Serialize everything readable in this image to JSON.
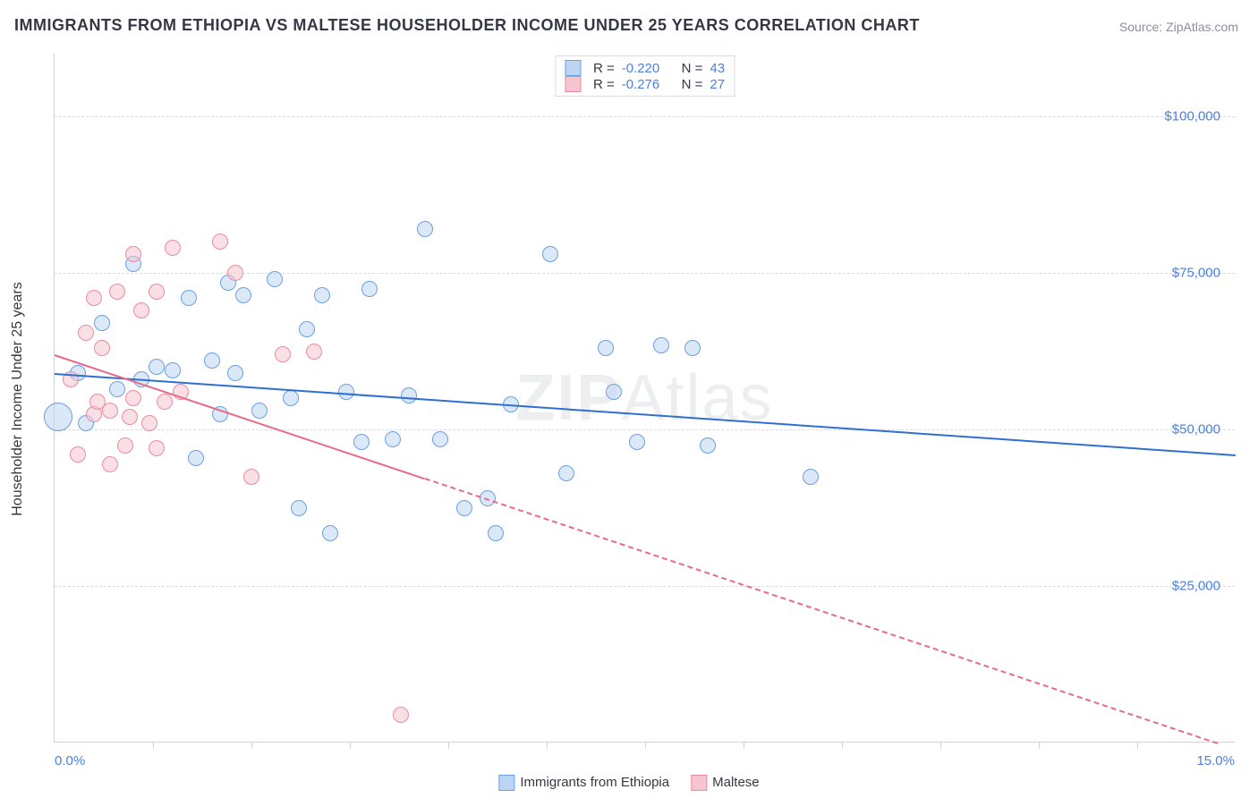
{
  "title": "IMMIGRANTS FROM ETHIOPIA VS MALTESE HOUSEHOLDER INCOME UNDER 25 YEARS CORRELATION CHART",
  "source": "Source: ZipAtlas.com",
  "watermark_a": "ZIP",
  "watermark_b": "Atlas",
  "chart": {
    "type": "scatter",
    "background_color": "#ffffff",
    "grid_color": "#d7dae0",
    "axis_color": "#cfd3da",
    "tick_color": "#cfd3da",
    "label_color": "#4a7fe0",
    "title_color": "#333844",
    "title_fontsize": 18,
    "label_fontsize": 15,
    "yaxis_title": "Householder Income Under 25 years",
    "xlim": [
      0,
      15
    ],
    "ylim": [
      0,
      110000
    ],
    "yticks": [
      25000,
      50000,
      75000,
      100000
    ],
    "ytick_labels": [
      "$25,000",
      "$50,000",
      "$75,000",
      "$100,000"
    ],
    "xticks_minor": [
      1.25,
      2.5,
      3.75,
      5.0,
      6.25,
      7.5,
      8.75,
      10.0,
      11.25,
      12.5,
      13.75
    ],
    "xtick_labels": {
      "left": "0.0%",
      "right": "15.0%"
    },
    "legend_bottom": [
      {
        "label": "Immigrants from Ethiopia",
        "fill": "#bcd5f2",
        "stroke": "#6aa0e4"
      },
      {
        "label": "Maltese",
        "fill": "#f6c5d0",
        "stroke": "#e98ba3"
      }
    ],
    "stats": [
      {
        "fill": "#bcd5f2",
        "stroke": "#6aa0e4",
        "R_label": "R =",
        "R": "-0.220",
        "N_label": "N =",
        "N": "43"
      },
      {
        "fill": "#f6c5d0",
        "stroke": "#e98ba3",
        "R_label": "R =",
        "R": "-0.276",
        "N_label": "N =",
        "N": "27"
      }
    ],
    "series": [
      {
        "name": "Immigrants from Ethiopia",
        "marker_fill": "#bcd5f2",
        "marker_stroke": "#6aa0e4",
        "marker_fill_opacity": 0.55,
        "marker_stroke_width": 1.5,
        "marker_radius": 9,
        "trend": {
          "x1": 0,
          "y1": 59000,
          "x2": 15,
          "y2": 46000,
          "color": "#2f6fd1",
          "width": 2.5,
          "dash_after_x": null
        },
        "points": [
          {
            "x": 0.05,
            "y": 52000,
            "r": 16
          },
          {
            "x": 0.3,
            "y": 59000
          },
          {
            "x": 0.4,
            "y": 51000
          },
          {
            "x": 0.6,
            "y": 67000
          },
          {
            "x": 0.8,
            "y": 56500
          },
          {
            "x": 1.0,
            "y": 76500
          },
          {
            "x": 1.1,
            "y": 58000
          },
          {
            "x": 1.3,
            "y": 60000
          },
          {
            "x": 1.5,
            "y": 59500
          },
          {
            "x": 1.7,
            "y": 71000
          },
          {
            "x": 1.8,
            "y": 45500
          },
          {
            "x": 2.0,
            "y": 61000
          },
          {
            "x": 2.1,
            "y": 52500
          },
          {
            "x": 2.3,
            "y": 59000
          },
          {
            "x": 2.4,
            "y": 71500
          },
          {
            "x": 2.6,
            "y": 53000
          },
          {
            "x": 2.8,
            "y": 74000
          },
          {
            "x": 3.0,
            "y": 55000
          },
          {
            "x": 3.1,
            "y": 37500
          },
          {
            "x": 3.2,
            "y": 66000
          },
          {
            "x": 3.4,
            "y": 71500
          },
          {
            "x": 3.5,
            "y": 33500
          },
          {
            "x": 3.7,
            "y": 56000
          },
          {
            "x": 4.0,
            "y": 72500
          },
          {
            "x": 4.3,
            "y": 48500
          },
          {
            "x": 4.5,
            "y": 55500
          },
          {
            "x": 4.7,
            "y": 82000
          },
          {
            "x": 4.9,
            "y": 48500
          },
          {
            "x": 5.2,
            "y": 37500
          },
          {
            "x": 5.5,
            "y": 39000
          },
          {
            "x": 5.6,
            "y": 33500
          },
          {
            "x": 5.8,
            "y": 54000
          },
          {
            "x": 6.3,
            "y": 78000
          },
          {
            "x": 6.5,
            "y": 43000
          },
          {
            "x": 7.0,
            "y": 63000
          },
          {
            "x": 7.1,
            "y": 56000
          },
          {
            "x": 7.4,
            "y": 48000
          },
          {
            "x": 7.7,
            "y": 63500
          },
          {
            "x": 8.1,
            "y": 63000
          },
          {
            "x": 8.3,
            "y": 47500
          },
          {
            "x": 9.6,
            "y": 42500
          },
          {
            "x": 2.2,
            "y": 73500
          },
          {
            "x": 3.9,
            "y": 48000
          }
        ]
      },
      {
        "name": "Maltese",
        "marker_fill": "#f6c5d0",
        "marker_stroke": "#e98ba3",
        "marker_fill_opacity": 0.55,
        "marker_stroke_width": 1.5,
        "marker_radius": 9,
        "trend": {
          "x1": 0,
          "y1": 62000,
          "x2": 15,
          "y2": -1000,
          "color": "#e66b88",
          "width": 2,
          "dash_after_x": 4.7
        },
        "points": [
          {
            "x": 0.2,
            "y": 58000
          },
          {
            "x": 0.3,
            "y": 46000
          },
          {
            "x": 0.4,
            "y": 65500
          },
          {
            "x": 0.5,
            "y": 52500
          },
          {
            "x": 0.5,
            "y": 71000
          },
          {
            "x": 0.55,
            "y": 54500
          },
          {
            "x": 0.6,
            "y": 63000
          },
          {
            "x": 0.7,
            "y": 53000
          },
          {
            "x": 0.7,
            "y": 44500
          },
          {
            "x": 0.8,
            "y": 72000
          },
          {
            "x": 0.9,
            "y": 47500
          },
          {
            "x": 0.95,
            "y": 52000
          },
          {
            "x": 1.0,
            "y": 78000
          },
          {
            "x": 1.0,
            "y": 55000
          },
          {
            "x": 1.1,
            "y": 69000
          },
          {
            "x": 1.2,
            "y": 51000
          },
          {
            "x": 1.3,
            "y": 47000
          },
          {
            "x": 1.3,
            "y": 72000
          },
          {
            "x": 1.4,
            "y": 54500
          },
          {
            "x": 1.5,
            "y": 79000
          },
          {
            "x": 1.6,
            "y": 56000
          },
          {
            "x": 2.1,
            "y": 80000
          },
          {
            "x": 2.3,
            "y": 75000
          },
          {
            "x": 2.5,
            "y": 42500
          },
          {
            "x": 2.9,
            "y": 62000
          },
          {
            "x": 3.3,
            "y": 62500
          },
          {
            "x": 4.4,
            "y": 4500
          }
        ]
      }
    ]
  }
}
